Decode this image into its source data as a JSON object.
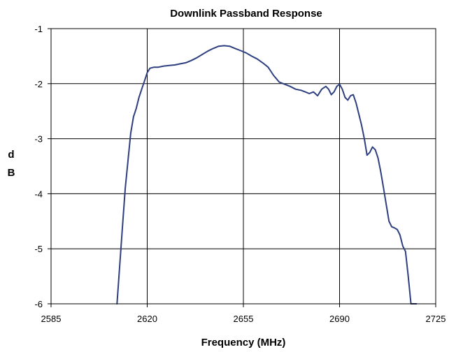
{
  "chart_data": {
    "type": "line",
    "title": "Downlink Passband Response",
    "xlabel": "Frequency (MHz)",
    "ylabel_lines": [
      "d",
      "B"
    ],
    "xlim": [
      2585,
      2725
    ],
    "ylim": [
      -6,
      -1
    ],
    "x_ticks": [
      "2585",
      "2620",
      "2655",
      "2690",
      "2725"
    ],
    "y_ticks": [
      "-1",
      "-2",
      "-3",
      "-4",
      "-5",
      "-6"
    ],
    "grid": true,
    "line_color": "#2E3F7F",
    "series": [
      {
        "x": [
          2609.0,
          2610.0,
          2611.0,
          2612.0,
          2613.0,
          2614.0,
          2615.0,
          2616.0,
          2617.0,
          2618.0,
          2619.0,
          2620.0,
          2621.0,
          2622.5,
          2624.0,
          2626.0,
          2628.0,
          2630.0,
          2632.0,
          2634.0,
          2636.0,
          2638.0,
          2640.0,
          2642.0,
          2644.0,
          2646.0,
          2648.0,
          2650.0,
          2652.0,
          2654.0,
          2656.0,
          2658.0,
          2660.0,
          2662.0,
          2664.0,
          2666.0,
          2668.0,
          2670.0,
          2672.0,
          2674.0,
          2676.0,
          2677.5,
          2679.0,
          2680.5,
          2682.0,
          2683.5,
          2685.0,
          2686.0,
          2687.0,
          2688.0,
          2689.0,
          2690.0,
          2691.0,
          2692.0,
          2693.0,
          2694.0,
          2695.0,
          2696.0,
          2697.0,
          2698.0,
          2699.0,
          2700.0,
          2701.0,
          2702.0,
          2703.0,
          2704.0,
          2705.0,
          2706.0,
          2707.0,
          2708.0,
          2709.0,
          2710.0,
          2711.0,
          2712.0,
          2713.0,
          2714.0,
          2715.0,
          2716.0,
          2717.0,
          2718.0
        ],
        "y": [
          -6.0,
          -5.3,
          -4.6,
          -3.9,
          -3.4,
          -2.9,
          -2.6,
          -2.45,
          -2.25,
          -2.1,
          -1.95,
          -1.8,
          -1.72,
          -1.7,
          -1.7,
          -1.68,
          -1.67,
          -1.66,
          -1.64,
          -1.62,
          -1.58,
          -1.53,
          -1.47,
          -1.41,
          -1.36,
          -1.32,
          -1.31,
          -1.32,
          -1.36,
          -1.4,
          -1.44,
          -1.5,
          -1.55,
          -1.62,
          -1.7,
          -1.85,
          -1.97,
          -2.01,
          -2.05,
          -2.1,
          -2.12,
          -2.15,
          -2.18,
          -2.15,
          -2.22,
          -2.1,
          -2.05,
          -2.1,
          -2.2,
          -2.15,
          -2.05,
          -2.01,
          -2.1,
          -2.25,
          -2.3,
          -2.22,
          -2.2,
          -2.35,
          -2.55,
          -2.75,
          -3.0,
          -3.3,
          -3.25,
          -3.15,
          -3.2,
          -3.35,
          -3.6,
          -3.9,
          -4.2,
          -4.5,
          -4.6,
          -4.62,
          -4.65,
          -4.75,
          -4.95,
          -5.05,
          -5.5,
          -6.0,
          -6.0,
          -6.0
        ]
      }
    ]
  }
}
